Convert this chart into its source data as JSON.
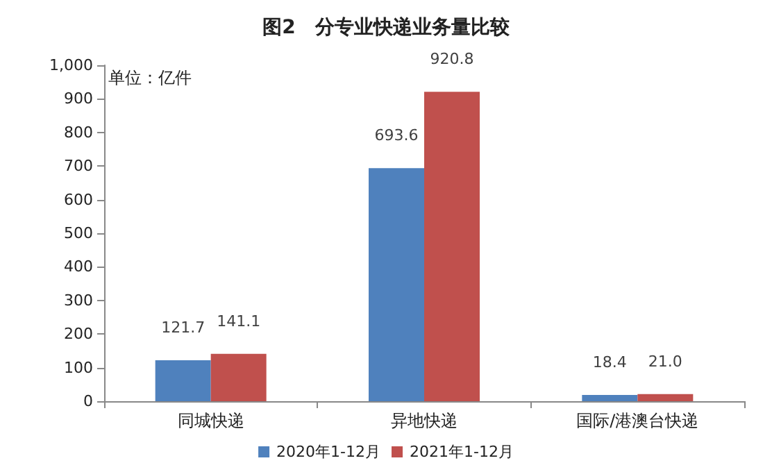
{
  "chart_data": {
    "type": "bar",
    "title": "图2　分专业快递业务量比较",
    "ylabel": "单位：亿件",
    "categories": [
      "同城快递",
      "异地快递",
      "国际/港澳台快递"
    ],
    "series": [
      {
        "name": "2020年1-12月",
        "color": "#4f81bd",
        "values": [
          121.7,
          693.6,
          18.4
        ],
        "value_labels": [
          "121.7",
          "693.6",
          "18.4"
        ]
      },
      {
        "name": "2021年1-12月",
        "color": "#c0504d",
        "values": [
          141.1,
          920.8,
          21.0
        ],
        "value_labels": [
          "141.1",
          "920.8",
          "21.0"
        ]
      }
    ],
    "ylim": [
      0,
      1000
    ],
    "yticks": [
      0,
      100,
      200,
      300,
      400,
      500,
      600,
      700,
      800,
      900,
      {
        "value": 1000,
        "label": "1,000"
      }
    ],
    "grid": false,
    "legend": "bottom"
  }
}
